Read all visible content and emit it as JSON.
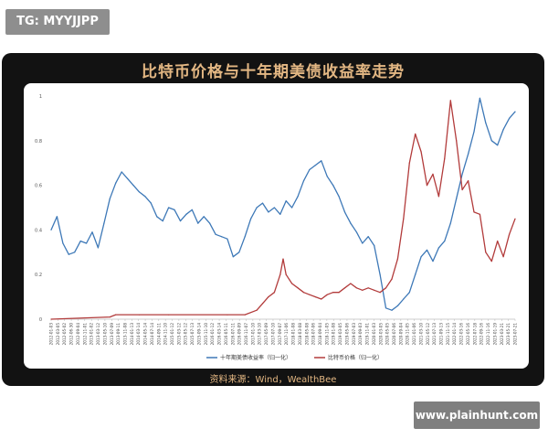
{
  "tag": "TG: MYYJJPP",
  "watermark": "www.plainhunt.com",
  "source": "资料来源：Wind，WealthBee",
  "colors": {
    "card_bg": "#121212",
    "accent": "#e3b783",
    "yield_color": "#3d78b7",
    "btc_color": "#b23b3b"
  },
  "chart_data": {
    "type": "line",
    "title": "比特币价格与十年期美债收益率走势",
    "ylim": [
      0,
      1
    ],
    "yticks": [
      "0",
      "0.2",
      "0.4",
      "0.6",
      "0.8",
      "1"
    ],
    "grid": false,
    "legend_position": "bottom",
    "x_labels": [
      "2012-01-03",
      "2012-03-05",
      "2012-05-02",
      "2012-06-30",
      "2012-09-04",
      "2012-11-01",
      "2013-01-02",
      "2013-03-12",
      "2013-05-10",
      "2013-07-09",
      "2013-09-11",
      "2013-11-08",
      "2014-01-13",
      "2014-03-14",
      "2014-05-14",
      "2014-07-14",
      "2014-09-11",
      "2014-11-10",
      "2015-01-12",
      "2015-03-12",
      "2015-05-12",
      "2015-07-13",
      "2015-09-14",
      "2015-11-10",
      "2016-01-12",
      "2016-03-14",
      "2016-05-11",
      "2016-07-11",
      "2016-09-09",
      "2016-11-07",
      "2017-01-10",
      "2017-03-10",
      "2017-05-09",
      "2017-07-10",
      "2017-09-07",
      "2017-11-06",
      "2018-01-08",
      "2018-03-08",
      "2018-05-08",
      "2018-07-06",
      "2018-09-04",
      "2018-11-05",
      "2019-01-08",
      "2019-03-05",
      "2019-05-06",
      "2019-07-03",
      "2019-09-03",
      "2019-11-01",
      "2020-01-03",
      "2020-03-05",
      "2020-05-05",
      "2020-07-06",
      "2020-09-04",
      "2020-11-05",
      "2021-01-06",
      "2021-03-10",
      "2021-05-12",
      "2021-07-13",
      "2021-09-13",
      "2021-11-15",
      "2022-01-14",
      "2022-03-16",
      "2022-05-16",
      "2022-07-18",
      "2022-09-16",
      "2022-11-16",
      "2023-01-19",
      "2023-03-21",
      "2023-05-21",
      "2023-07-21"
    ],
    "series": [
      {
        "name": "十年期美债收益率（归一化）",
        "points": [
          [
            0,
            0.4
          ],
          [
            2,
            0.46
          ],
          [
            4,
            0.34
          ],
          [
            6,
            0.29
          ],
          [
            8,
            0.3
          ],
          [
            10,
            0.35
          ],
          [
            12,
            0.34
          ],
          [
            14,
            0.39
          ],
          [
            16,
            0.32
          ],
          [
            18,
            0.43
          ],
          [
            20,
            0.54
          ],
          [
            22,
            0.61
          ],
          [
            24,
            0.66
          ],
          [
            26,
            0.63
          ],
          [
            28,
            0.6
          ],
          [
            30,
            0.57
          ],
          [
            32,
            0.55
          ],
          [
            34,
            0.52
          ],
          [
            36,
            0.46
          ],
          [
            38,
            0.44
          ],
          [
            40,
            0.5
          ],
          [
            42,
            0.49
          ],
          [
            44,
            0.44
          ],
          [
            46,
            0.47
          ],
          [
            48,
            0.49
          ],
          [
            50,
            0.43
          ],
          [
            52,
            0.46
          ],
          [
            54,
            0.43
          ],
          [
            56,
            0.38
          ],
          [
            58,
            0.37
          ],
          [
            60,
            0.36
          ],
          [
            62,
            0.28
          ],
          [
            64,
            0.3
          ],
          [
            66,
            0.37
          ],
          [
            68,
            0.45
          ],
          [
            70,
            0.5
          ],
          [
            72,
            0.52
          ],
          [
            74,
            0.48
          ],
          [
            76,
            0.5
          ],
          [
            78,
            0.47
          ],
          [
            80,
            0.53
          ],
          [
            82,
            0.5
          ],
          [
            84,
            0.55
          ],
          [
            86,
            0.62
          ],
          [
            88,
            0.67
          ],
          [
            90,
            0.69
          ],
          [
            92,
            0.71
          ],
          [
            94,
            0.64
          ],
          [
            96,
            0.6
          ],
          [
            98,
            0.55
          ],
          [
            100,
            0.48
          ],
          [
            102,
            0.43
          ],
          [
            104,
            0.39
          ],
          [
            106,
            0.34
          ],
          [
            108,
            0.37
          ],
          [
            110,
            0.33
          ],
          [
            112,
            0.2
          ],
          [
            114,
            0.05
          ],
          [
            116,
            0.04
          ],
          [
            118,
            0.06
          ],
          [
            120,
            0.09
          ],
          [
            122,
            0.12
          ],
          [
            124,
            0.2
          ],
          [
            126,
            0.28
          ],
          [
            128,
            0.31
          ],
          [
            130,
            0.26
          ],
          [
            132,
            0.32
          ],
          [
            134,
            0.35
          ],
          [
            136,
            0.43
          ],
          [
            138,
            0.54
          ],
          [
            140,
            0.65
          ],
          [
            142,
            0.74
          ],
          [
            144,
            0.84
          ],
          [
            146,
            0.99
          ],
          [
            148,
            0.88
          ],
          [
            150,
            0.8
          ],
          [
            152,
            0.78
          ],
          [
            154,
            0.85
          ],
          [
            156,
            0.9
          ],
          [
            158,
            0.93
          ]
        ]
      },
      {
        "name": "比特币价格（归一化）",
        "points": [
          [
            0,
            0.0
          ],
          [
            20,
            0.01
          ],
          [
            22,
            0.02
          ],
          [
            30,
            0.02
          ],
          [
            40,
            0.02
          ],
          [
            60,
            0.02
          ],
          [
            66,
            0.02
          ],
          [
            70,
            0.04
          ],
          [
            72,
            0.07
          ],
          [
            74,
            0.1
          ],
          [
            76,
            0.12
          ],
          [
            78,
            0.2
          ],
          [
            79,
            0.27
          ],
          [
            80,
            0.2
          ],
          [
            82,
            0.16
          ],
          [
            84,
            0.14
          ],
          [
            86,
            0.12
          ],
          [
            88,
            0.11
          ],
          [
            90,
            0.1
          ],
          [
            92,
            0.09
          ],
          [
            94,
            0.11
          ],
          [
            96,
            0.12
          ],
          [
            98,
            0.12
          ],
          [
            100,
            0.14
          ],
          [
            102,
            0.16
          ],
          [
            104,
            0.14
          ],
          [
            106,
            0.13
          ],
          [
            108,
            0.14
          ],
          [
            110,
            0.13
          ],
          [
            112,
            0.12
          ],
          [
            114,
            0.14
          ],
          [
            116,
            0.18
          ],
          [
            118,
            0.27
          ],
          [
            120,
            0.45
          ],
          [
            122,
            0.7
          ],
          [
            124,
            0.83
          ],
          [
            126,
            0.75
          ],
          [
            128,
            0.6
          ],
          [
            130,
            0.65
          ],
          [
            132,
            0.55
          ],
          [
            134,
            0.72
          ],
          [
            136,
            0.98
          ],
          [
            138,
            0.8
          ],
          [
            140,
            0.58
          ],
          [
            142,
            0.62
          ],
          [
            144,
            0.48
          ],
          [
            146,
            0.47
          ],
          [
            148,
            0.3
          ],
          [
            150,
            0.26
          ],
          [
            152,
            0.35
          ],
          [
            154,
            0.28
          ],
          [
            156,
            0.38
          ],
          [
            158,
            0.45
          ]
        ]
      }
    ]
  }
}
